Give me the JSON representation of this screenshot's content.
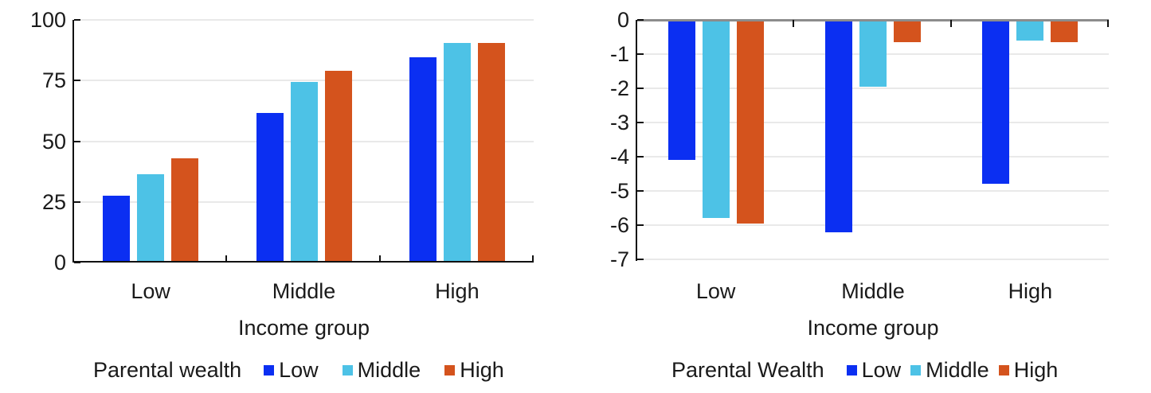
{
  "page": {
    "background": "#ffffff",
    "text_color": "#1a1a1a"
  },
  "palette": {
    "blue": "#0b2ff2",
    "cyan": "#4dc2e6",
    "orange": "#d4531d",
    "gridline": "#e9e9e9",
    "zero_line": "#8c8c8c",
    "axis": "#111111"
  },
  "chart_data": [
    {
      "id": "enrollment-by-income-and-parental-wealth",
      "type": "bar",
      "title": "",
      "xlabel": "Income group",
      "ylabel": "",
      "legend_title": "Parental wealth",
      "legend_position": "bottom",
      "grid": true,
      "categories": [
        "Low",
        "Middle",
        "High"
      ],
      "series": [
        {
          "name": "Low",
          "color": "#0b2ff2",
          "values": [
            27.5,
            61.5,
            84.5
          ]
        },
        {
          "name": "Middle",
          "color": "#4dc2e6",
          "values": [
            36.5,
            74.5,
            90.5
          ]
        },
        {
          "name": "High",
          "color": "#d4531d",
          "values": [
            43,
            79,
            90.5
          ]
        }
      ],
      "ylim": [
        0,
        100
      ],
      "yticks": [
        0,
        25,
        50,
        75,
        100
      ],
      "ytick_labels": [
        "0",
        "25",
        "50",
        "75",
        "100"
      ]
    },
    {
      "id": "gap-by-income-and-parental-wealth",
      "type": "bar",
      "title": "",
      "xlabel": "Income group",
      "ylabel": "",
      "legend_title": "Parental Wealth",
      "legend_position": "bottom",
      "grid": true,
      "categories": [
        "Low",
        "Middle",
        "High"
      ],
      "series": [
        {
          "name": "Low",
          "color": "#0b2ff2",
          "values": [
            -4.1,
            -6.2,
            -4.8
          ]
        },
        {
          "name": "Middle",
          "color": "#4dc2e6",
          "values": [
            -5.8,
            -1.95,
            -0.6
          ]
        },
        {
          "name": "High",
          "color": "#d4531d",
          "values": [
            -5.95,
            -0.65,
            -0.65
          ]
        }
      ],
      "ylim": [
        -7,
        0
      ],
      "yticks": [
        0,
        -1,
        -2,
        -3,
        -4,
        -5,
        -6,
        -7
      ],
      "ytick_labels": [
        "0",
        "-1",
        "-2",
        "-3",
        "-4",
        "-5",
        "-6",
        "-7"
      ]
    }
  ]
}
